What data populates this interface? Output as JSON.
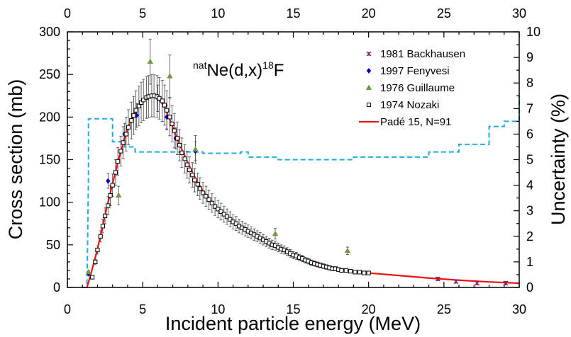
{
  "chart_data": {
    "type": "scatter",
    "reaction_label": {
      "pre": "nat",
      "main": "Ne(d,x)",
      "sup": "18",
      "post": "F"
    },
    "xlabel": "Incident particle energy (MeV)",
    "ylabel": "Cross section (mb)",
    "ylabel_right": "Uncertainty (%)",
    "xlim": [
      0,
      30
    ],
    "ylim": [
      0,
      300
    ],
    "ylim_right": [
      0,
      10
    ],
    "x_ticks": [
      "0",
      "5",
      "10",
      "15",
      "20",
      "25",
      "30"
    ],
    "x_ticks_top": [
      "0",
      "5",
      "10",
      "15",
      "20",
      "25",
      "30"
    ],
    "y_ticks": [
      "0",
      "50",
      "100",
      "150",
      "200",
      "250",
      "300"
    ],
    "y_ticks_right": [
      "0",
      "1",
      "2",
      "3",
      "4",
      "5",
      "6",
      "7",
      "8",
      "9",
      "10"
    ],
    "legend_position": "top-right",
    "colors": {
      "backhausen": "#8b1a6b",
      "fenyvesi": "#0000cc",
      "guillaume": "#6f9b3c",
      "nozaki": "#000000",
      "fit": "#ee1111",
      "uncertainty": "#22aadd"
    },
    "series": [
      {
        "name": "1981 Backhausen",
        "marker": "star",
        "points": [
          [
            24.6,
            10
          ],
          [
            25.8,
            7
          ],
          [
            27.2,
            5
          ],
          [
            29.1,
            5
          ]
        ]
      },
      {
        "name": "1997 Fenyvesi",
        "marker": "diamond",
        "points": [
          [
            1.4,
            16
          ],
          [
            2.7,
            125
          ],
          [
            3.8,
            180
          ],
          [
            4.6,
            202
          ],
          [
            6.0,
            222
          ],
          [
            6.6,
            200
          ],
          [
            7.2,
            175
          ],
          [
            8.5,
            160
          ]
        ]
      },
      {
        "name": "1976 Guillaume",
        "marker": "triangle",
        "points": [
          [
            1.4,
            18
          ],
          [
            3.4,
            108
          ],
          [
            5.5,
            265
          ],
          [
            6.8,
            248
          ],
          [
            8.5,
            162
          ],
          [
            13.8,
            63
          ],
          [
            18.6,
            43
          ]
        ]
      },
      {
        "name": "1974 Nozaki",
        "marker": "square",
        "points": [
          [
            1.65,
            12
          ],
          [
            1.85,
            30
          ],
          [
            2.0,
            44
          ],
          [
            2.2,
            60
          ],
          [
            2.35,
            72
          ],
          [
            2.5,
            84
          ],
          [
            2.7,
            96
          ],
          [
            2.85,
            108
          ],
          [
            3.0,
            120
          ],
          [
            3.2,
            135
          ],
          [
            3.35,
            148
          ],
          [
            3.55,
            160
          ],
          [
            3.7,
            170
          ],
          [
            3.9,
            180
          ],
          [
            4.05,
            188
          ],
          [
            4.25,
            196
          ],
          [
            4.4,
            202
          ],
          [
            4.55,
            208
          ],
          [
            4.75,
            213
          ],
          [
            4.9,
            217
          ],
          [
            5.05,
            220
          ],
          [
            5.25,
            223
          ],
          [
            5.4,
            224
          ],
          [
            5.6,
            225
          ],
          [
            5.75,
            225
          ],
          [
            5.95,
            224
          ],
          [
            6.1,
            222
          ],
          [
            6.3,
            219
          ],
          [
            6.45,
            214
          ],
          [
            6.6,
            208
          ],
          [
            6.8,
            200
          ],
          [
            6.95,
            192
          ],
          [
            7.1,
            184
          ],
          [
            7.3,
            175
          ],
          [
            7.45,
            167
          ],
          [
            7.6,
            158
          ],
          [
            7.8,
            151
          ],
          [
            7.95,
            144
          ],
          [
            8.1,
            138
          ],
          [
            8.3,
            132
          ],
          [
            8.45,
            126
          ],
          [
            8.65,
            121
          ],
          [
            8.8,
            116
          ],
          [
            9.0,
            111
          ],
          [
            9.2,
            107
          ],
          [
            9.4,
            103
          ],
          [
            9.6,
            99
          ],
          [
            9.8,
            95
          ],
          [
            10.0,
            92
          ],
          [
            10.2,
            89
          ],
          [
            10.4,
            86
          ],
          [
            10.6,
            83
          ],
          [
            10.8,
            80
          ],
          [
            11.0,
            77
          ],
          [
            11.2,
            75
          ],
          [
            11.4,
            72
          ],
          [
            11.6,
            70
          ],
          [
            11.8,
            68
          ],
          [
            12.0,
            66
          ],
          [
            12.2,
            64
          ],
          [
            12.4,
            62
          ],
          [
            12.6,
            60
          ],
          [
            12.8,
            58
          ],
          [
            13.0,
            56
          ],
          [
            13.2,
            54
          ],
          [
            13.4,
            52
          ],
          [
            13.6,
            50
          ],
          [
            13.8,
            49
          ],
          [
            14.0,
            47
          ],
          [
            14.2,
            45
          ],
          [
            14.4,
            44
          ],
          [
            14.6,
            42
          ],
          [
            14.8,
            40
          ],
          [
            15.0,
            38
          ],
          [
            15.2,
            37
          ],
          [
            15.4,
            35
          ],
          [
            15.6,
            34
          ],
          [
            15.8,
            32
          ],
          [
            16.0,
            31
          ],
          [
            16.2,
            29
          ],
          [
            16.4,
            28
          ],
          [
            16.6,
            27
          ],
          [
            16.8,
            26
          ],
          [
            17.0,
            25
          ],
          [
            17.2,
            24
          ],
          [
            17.4,
            23
          ],
          [
            17.6,
            22
          ],
          [
            17.8,
            22
          ],
          [
            18.0,
            21
          ],
          [
            18.2,
            20
          ],
          [
            18.5,
            20
          ],
          [
            18.8,
            19
          ],
          [
            19.1,
            18
          ],
          [
            19.4,
            18
          ],
          [
            19.7,
            17
          ],
          [
            20.0,
            17
          ]
        ]
      }
    ],
    "fit": {
      "name": "Padé 15, N=91",
      "points": [
        [
          1.3,
          0
        ],
        [
          1.5,
          12
        ],
        [
          2.0,
          45
        ],
        [
          2.5,
          85
        ],
        [
          3.0,
          122
        ],
        [
          3.5,
          157
        ],
        [
          4.0,
          186
        ],
        [
          4.5,
          207
        ],
        [
          5.0,
          220
        ],
        [
          5.5,
          225
        ],
        [
          6.0,
          224
        ],
        [
          6.5,
          210
        ],
        [
          7.0,
          188
        ],
        [
          7.5,
          166
        ],
        [
          8.0,
          146
        ],
        [
          8.5,
          128
        ],
        [
          9.0,
          113
        ],
        [
          10.0,
          92
        ],
        [
          11.0,
          78
        ],
        [
          12.0,
          66
        ],
        [
          13.0,
          56
        ],
        [
          14.0,
          47
        ],
        [
          15.0,
          39
        ],
        [
          16.0,
          32
        ],
        [
          17.0,
          27
        ],
        [
          18.0,
          22
        ],
        [
          19.0,
          19
        ],
        [
          20.0,
          17
        ],
        [
          22.0,
          14
        ],
        [
          24.0,
          11
        ],
        [
          26.0,
          8.5
        ],
        [
          28.0,
          6.5
        ],
        [
          30.0,
          5
        ]
      ]
    },
    "uncertainty": {
      "points": [
        [
          1.0,
          0
        ],
        [
          1.3,
          0
        ],
        [
          1.4,
          4.3
        ],
        [
          1.4,
          6.6
        ],
        [
          3.0,
          6.6
        ],
        [
          3.0,
          5.7
        ],
        [
          3.8,
          5.7
        ],
        [
          3.8,
          5.5
        ],
        [
          4.5,
          5.5
        ],
        [
          4.5,
          5.3
        ],
        [
          9.0,
          5.3
        ],
        [
          9.0,
          5.25
        ],
        [
          11.5,
          5.25
        ],
        [
          11.5,
          5.3
        ],
        [
          12.0,
          5.3
        ],
        [
          12.0,
          5.1
        ],
        [
          14.0,
          5.1
        ],
        [
          14.0,
          5.0
        ],
        [
          19.0,
          5.0
        ],
        [
          19.0,
          5.1
        ],
        [
          24.0,
          5.1
        ],
        [
          24.0,
          5.3
        ],
        [
          26.0,
          5.3
        ],
        [
          26.0,
          5.6
        ],
        [
          28.0,
          5.6
        ],
        [
          28.0,
          6.3
        ],
        [
          29.0,
          6.3
        ],
        [
          29.0,
          6.5
        ],
        [
          30.0,
          6.5
        ],
        [
          30.0,
          7.5
        ]
      ]
    }
  }
}
